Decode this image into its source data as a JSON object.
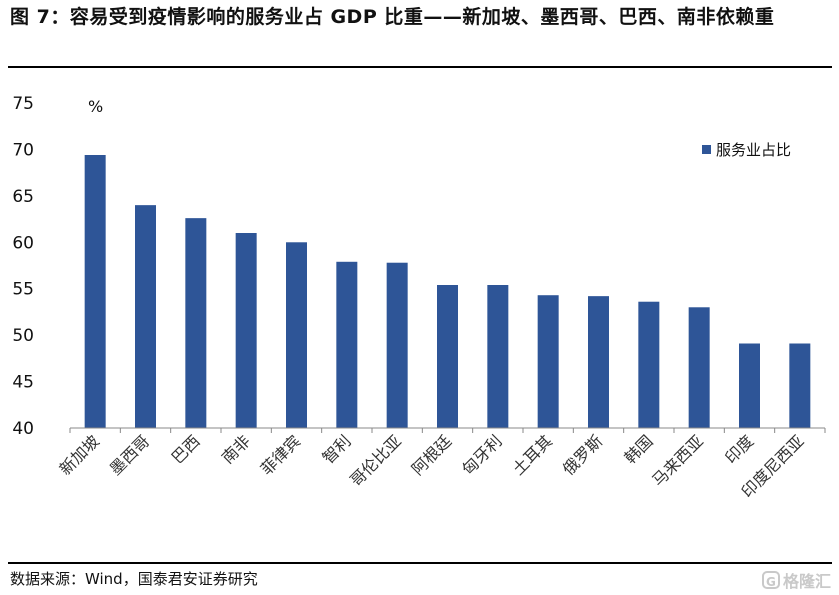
{
  "header": {
    "title": "图 7：容易受到疫情影响的服务业占 GDP 比重——新加坡、墨西哥、巴西、南非依赖重"
  },
  "footer": {
    "source": "数据来源：Wind，国泰君安证券研究",
    "watermark_text": "格隆汇",
    "watermark_logo": "G"
  },
  "colors": {
    "bar": "#2E5597",
    "text": "#111111",
    "axis": "#888888"
  },
  "chart_data": {
    "type": "bar",
    "title": "",
    "xlabel": "",
    "ylabel": "",
    "unit": "%",
    "ylim": [
      40,
      75
    ],
    "yticks": [
      40,
      45,
      50,
      55,
      60,
      65,
      70,
      75
    ],
    "grid": false,
    "legend": "top-right",
    "categories": [
      "新加坡",
      "墨西哥",
      "巴西",
      "南非",
      "菲律宾",
      "智利",
      "哥伦比亚",
      "阿根廷",
      "匈牙利",
      "土耳其",
      "俄罗斯",
      "韩国",
      "马来西亚",
      "印度",
      "印度尼西亚"
    ],
    "series": [
      {
        "name": "服务业占比",
        "values": [
          69.4,
          64.0,
          62.6,
          61.0,
          60.0,
          57.9,
          57.8,
          55.4,
          55.4,
          54.3,
          54.2,
          53.6,
          53.0,
          49.1,
          49.1
        ]
      }
    ]
  }
}
